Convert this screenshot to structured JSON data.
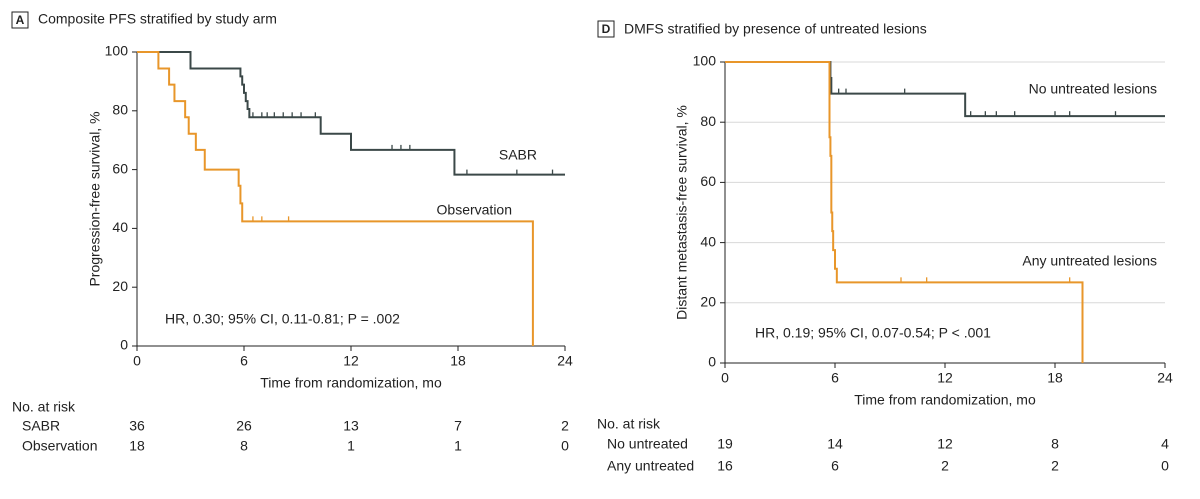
{
  "chart_data": [
    {
      "type": "line",
      "step": true,
      "panel": "A",
      "title": "Composite PFS stratified by study arm",
      "xlabel": "Time from randomization, mo",
      "ylabel": "Progression-free survival, %",
      "xlim": [
        0,
        24
      ],
      "xticks": [
        0,
        6,
        12,
        18,
        24
      ],
      "ylim": [
        0,
        100
      ],
      "yticks": [
        0,
        20,
        40,
        60,
        80,
        100
      ],
      "grid": false,
      "annotation": "HR, 0.30; 95% CI, 0.11-0.81; P = .002",
      "series": [
        {
          "name": "SABR",
          "color": "#3b4848",
          "x": [
            0,
            3,
            5.8,
            5.9,
            6.0,
            6.1,
            6.2,
            6.3,
            10.3,
            12,
            17.8,
            24
          ],
          "values": [
            100,
            94.4,
            91.7,
            88.9,
            86.1,
            83.3,
            80.6,
            77.8,
            72.2,
            66.7,
            58.3,
            58.3
          ],
          "censored": [
            6.5,
            7.0,
            7.3,
            7.7,
            8.2,
            8.7,
            9.2,
            10.0,
            14.3,
            14.8,
            15.3,
            18.5,
            21.3,
            23.3
          ]
        },
        {
          "name": "Observation",
          "color": "#e8962a",
          "x": [
            0,
            1.2,
            1.8,
            2.1,
            2.7,
            2.9,
            3.3,
            3.8,
            5.7,
            5.8,
            5.9,
            22.2
          ],
          "values": [
            100,
            94.4,
            88.9,
            83.3,
            77.8,
            72.2,
            66.7,
            60.0,
            54.5,
            48.5,
            42.4,
            0
          ],
          "censored": [
            6.5,
            7.0,
            8.5
          ]
        }
      ],
      "risk_table": {
        "label": "No. at risk",
        "rows": [
          {
            "name": "SABR",
            "values": [
              36,
              26,
              13,
              7,
              2
            ]
          },
          {
            "name": "Observation",
            "values": [
              18,
              8,
              1,
              1,
              0
            ]
          }
        ]
      }
    },
    {
      "type": "line",
      "step": true,
      "panel": "D",
      "title": "DMFS stratified by presence of untreated lesions",
      "xlabel": "Time from randomization, mo",
      "ylabel": "Distant metastasis-free survival, %",
      "xlim": [
        0,
        24
      ],
      "xticks": [
        0,
        6,
        12,
        18,
        24
      ],
      "ylim": [
        0,
        100
      ],
      "yticks": [
        0,
        20,
        40,
        60,
        80,
        100
      ],
      "grid": true,
      "annotation": "HR, 0.19; 95% CI, 0.07-0.54; P < .001",
      "series": [
        {
          "name": "No untreated lesions",
          "color": "#3b4848",
          "x": [
            0,
            5.75,
            5.8,
            13.1,
            24
          ],
          "values": [
            100,
            94.7,
            89.5,
            82.0,
            82.0
          ],
          "censored": [
            6.2,
            6.6,
            9.8,
            13.4,
            14.2,
            14.8,
            15.8,
            18.0,
            18.8,
            21.3
          ]
        },
        {
          "name": "Any untreated lesions",
          "color": "#e8962a",
          "x": [
            0,
            5.7,
            5.75,
            5.8,
            5.85,
            5.9,
            6.0,
            6.1,
            19.5
          ],
          "values": [
            100,
            75.0,
            68.8,
            50.0,
            43.8,
            37.5,
            31.3,
            26.8,
            0
          ],
          "censored": [
            9.6,
            11.0,
            18.8
          ]
        }
      ],
      "risk_table": {
        "label": "No. at risk",
        "rows": [
          {
            "name": "No untreated",
            "values": [
              19,
              14,
              12,
              8,
              4
            ]
          },
          {
            "name": "Any untreated",
            "values": [
              16,
              6,
              2,
              2,
              0
            ]
          }
        ]
      }
    }
  ]
}
